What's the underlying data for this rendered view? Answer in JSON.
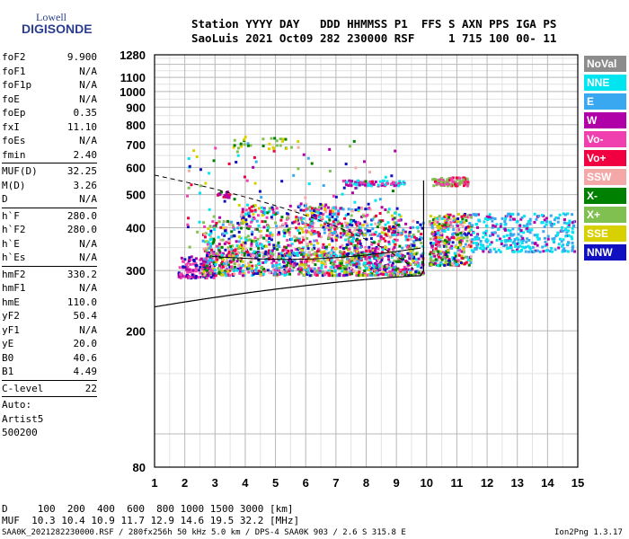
{
  "logo": {
    "line1": "Lowell",
    "line2": "DIGISONDE"
  },
  "header": {
    "line1": "Station YYYY DAY   DDD HHMMSS P1  FFS S AXN PPS IGA PS",
    "line2": "SaoLuis 2021 Oct09 282 230000 RSF     1 715 100 00- 11"
  },
  "params_group1": [
    {
      "key": "foF2",
      "value": "9.900"
    },
    {
      "key": "foF1",
      "value": "N/A"
    },
    {
      "key": "foF1p",
      "value": "N/A"
    },
    {
      "key": "foE",
      "value": "N/A"
    },
    {
      "key": "foEp",
      "value": "0.35"
    },
    {
      "key": "fxI",
      "value": "11.10"
    },
    {
      "key": "foEs",
      "value": "N/A"
    },
    {
      "key": "fmin",
      "value": "2.40"
    }
  ],
  "params_group2": [
    {
      "key": "MUF(D)",
      "value": "32.25"
    },
    {
      "key": "M(D)",
      "value": "3.26"
    },
    {
      "key": "D",
      "value": "N/A"
    }
  ],
  "params_group3": [
    {
      "key": "h`F",
      "value": "280.0"
    },
    {
      "key": "h`F2",
      "value": "280.0"
    },
    {
      "key": "h`E",
      "value": "N/A"
    },
    {
      "key": "h`Es",
      "value": "N/A"
    }
  ],
  "params_group4": [
    {
      "key": "hmF2",
      "value": "330.2"
    },
    {
      "key": "hmF1",
      "value": "N/A"
    },
    {
      "key": "hmE",
      "value": "110.0"
    },
    {
      "key": "yF2",
      "value": "50.4"
    },
    {
      "key": "yF1",
      "value": "N/A"
    },
    {
      "key": "yE",
      "value": "20.0"
    },
    {
      "key": "B0",
      "value": "40.6"
    },
    {
      "key": "B1",
      "value": "4.49"
    }
  ],
  "c_level": {
    "key": "C-level",
    "value": "22"
  },
  "auto_lines": [
    "Auto:",
    "Artist5",
    "500200"
  ],
  "legend": [
    {
      "label": "NoVal",
      "color": "#8c8c8c"
    },
    {
      "label": "NNE",
      "color": "#00e5f0"
    },
    {
      "label": "E",
      "color": "#3aa8f0"
    },
    {
      "label": "W",
      "color": "#b000a8"
    },
    {
      "label": "Vo-",
      "color": "#f040b0"
    },
    {
      "label": "Vo+",
      "color": "#f00040"
    },
    {
      "label": "SSW",
      "color": "#f5a8a8"
    },
    {
      "label": "X-",
      "color": "#008000"
    },
    {
      "label": "X+",
      "color": "#80c050"
    },
    {
      "label": "SSE",
      "color": "#d8d000"
    },
    {
      "label": "NNW",
      "color": "#1010c0"
    }
  ],
  "bottom": {
    "d_line": "D     100  200  400  600  800 1000 1500 3000 [km]",
    "muf_line": "MUF  10.3 10.4 10.9 11.7 12.9 14.6 19.5 32.2 [MHz]"
  },
  "footer": {
    "left": "SAA0K_2021282230000.RSF / 280fx256h 50 kHz 5.0 km / DPS-4 SAA0K 903 / 2.6 S 315.8 E",
    "right": "Ion2Png 1.3.17"
  },
  "chart_data": {
    "type": "scatter",
    "x_ticks": [
      "1",
      "2",
      "3",
      "4",
      "5",
      "6",
      "7",
      "8",
      "9",
      "10",
      "11",
      "12",
      "13",
      "14",
      "15"
    ],
    "y_ticks": [
      "80",
      "200",
      "300",
      "400",
      "500",
      "600",
      "700",
      "800",
      "900",
      "1000",
      "1100",
      "1280"
    ],
    "xlim": [
      1,
      15
    ],
    "ylim": [
      80,
      1280
    ],
    "y_scale": "log",
    "grid": true
  }
}
